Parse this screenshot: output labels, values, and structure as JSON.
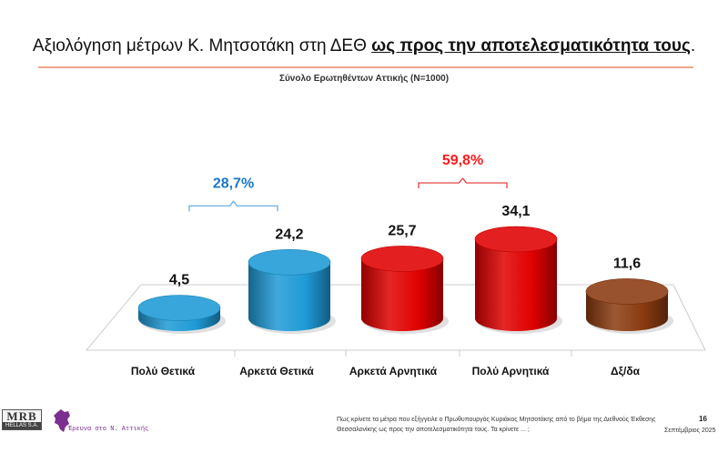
{
  "header": {
    "title_plain": "Αξιολόγηση μέτρων Κ. Μητσοτάκη στη ΔΕΘ ",
    "title_emph": "ως προς την αποτελεσματικότητα τους",
    "title_end": ".",
    "subtitle": "Σύνολο Ερωτηθέντων Αττικής (N=1000)"
  },
  "chart_data": {
    "type": "bar",
    "style": "3d-cylinders",
    "categories": [
      "Πολύ Θετικά",
      "Αρκετά Θετικά",
      "Αρκετά Αρνητικά",
      "Πολύ Αρνητικά",
      "Δξ/δα"
    ],
    "values": [
      4.5,
      24.2,
      25.7,
      34.1,
      11.6
    ],
    "value_labels": [
      "4,5",
      "24,2",
      "25,7",
      "34,1",
      "11,6"
    ],
    "colors": [
      "#1e9ad6",
      "#1e9ad6",
      "#e00000",
      "#e00000",
      "#8a3a10"
    ],
    "groups": [
      {
        "label": "28,7%",
        "from": 0,
        "to": 1,
        "value": 28.7,
        "color": "#1a78c8",
        "bracket_color": "#5aa7e0"
      },
      {
        "label": "59,8%",
        "from": 2,
        "to": 3,
        "value": 59.8,
        "color": "#ff1a1a",
        "bracket_color": "#e03030"
      }
    ],
    "grid": false,
    "legend": "none"
  },
  "footer": {
    "question": "Πως κρίνετε τα μέτρα που εξήγγειλε ο Πρωθυπουργός Κυριάκος Μητσοτάκης από το βήμα της Διεθνούς Έκθεσης Θεσσαλονίκης ως προς την αποτελεσματικότητα τους. Τα κρίνετε ... ;",
    "page": "16",
    "date": "Σεπτέμβριος 2025",
    "logo_main": "MRB",
    "logo_sub": "HELLAS S.A.",
    "partner": "Έρευνα στο Ν. Αττικής"
  }
}
